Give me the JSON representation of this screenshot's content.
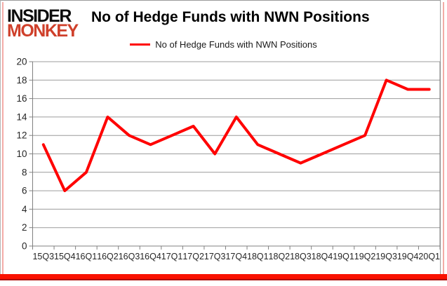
{
  "brand": {
    "logo_line1": "INSIDER",
    "logo_line2": "MONKEY",
    "logo_color_top": "#0d0d0d",
    "logo_color_bottom": "#cf402b"
  },
  "header": {
    "title": "No of Hedge Funds with NWN Positions"
  },
  "legend": {
    "label": "No of Hedge Funds with NWN Positions",
    "marker_color": "#ff0000",
    "position": "top-center"
  },
  "colors": {
    "series_red": "#ff0000",
    "gridline_gray": "#9c9c9c",
    "axis_gray": "#808080",
    "tick_label": "#262626",
    "frame_pink": "#f3aca7",
    "bottom_bar_red": "#fa1200"
  },
  "chart_data": {
    "type": "line",
    "title": "No of Hedge Funds with NWN Positions",
    "categories": [
      "15Q3",
      "15Q4",
      "16Q1",
      "16Q2",
      "16Q3",
      "16Q4",
      "17Q1",
      "17Q2",
      "17Q3",
      "17Q4",
      "18Q1",
      "18Q2",
      "18Q3",
      "18Q4",
      "19Q1",
      "19Q2",
      "19Q3",
      "19Q4",
      "20Q1"
    ],
    "series": [
      {
        "name": "No of Hedge Funds with NWN Positions",
        "color": "#ff0000",
        "values": [
          11,
          6,
          8,
          14,
          12,
          11,
          12,
          13,
          10,
          14,
          11,
          10,
          9,
          10,
          11,
          12,
          18,
          17,
          17
        ]
      }
    ],
    "xlabel": "",
    "ylabel": "",
    "ylim": [
      0,
      20
    ],
    "y_ticks": [
      0,
      2,
      4,
      6,
      8,
      10,
      12,
      14,
      16,
      18,
      20
    ],
    "grid": true,
    "legend_position": "top"
  }
}
